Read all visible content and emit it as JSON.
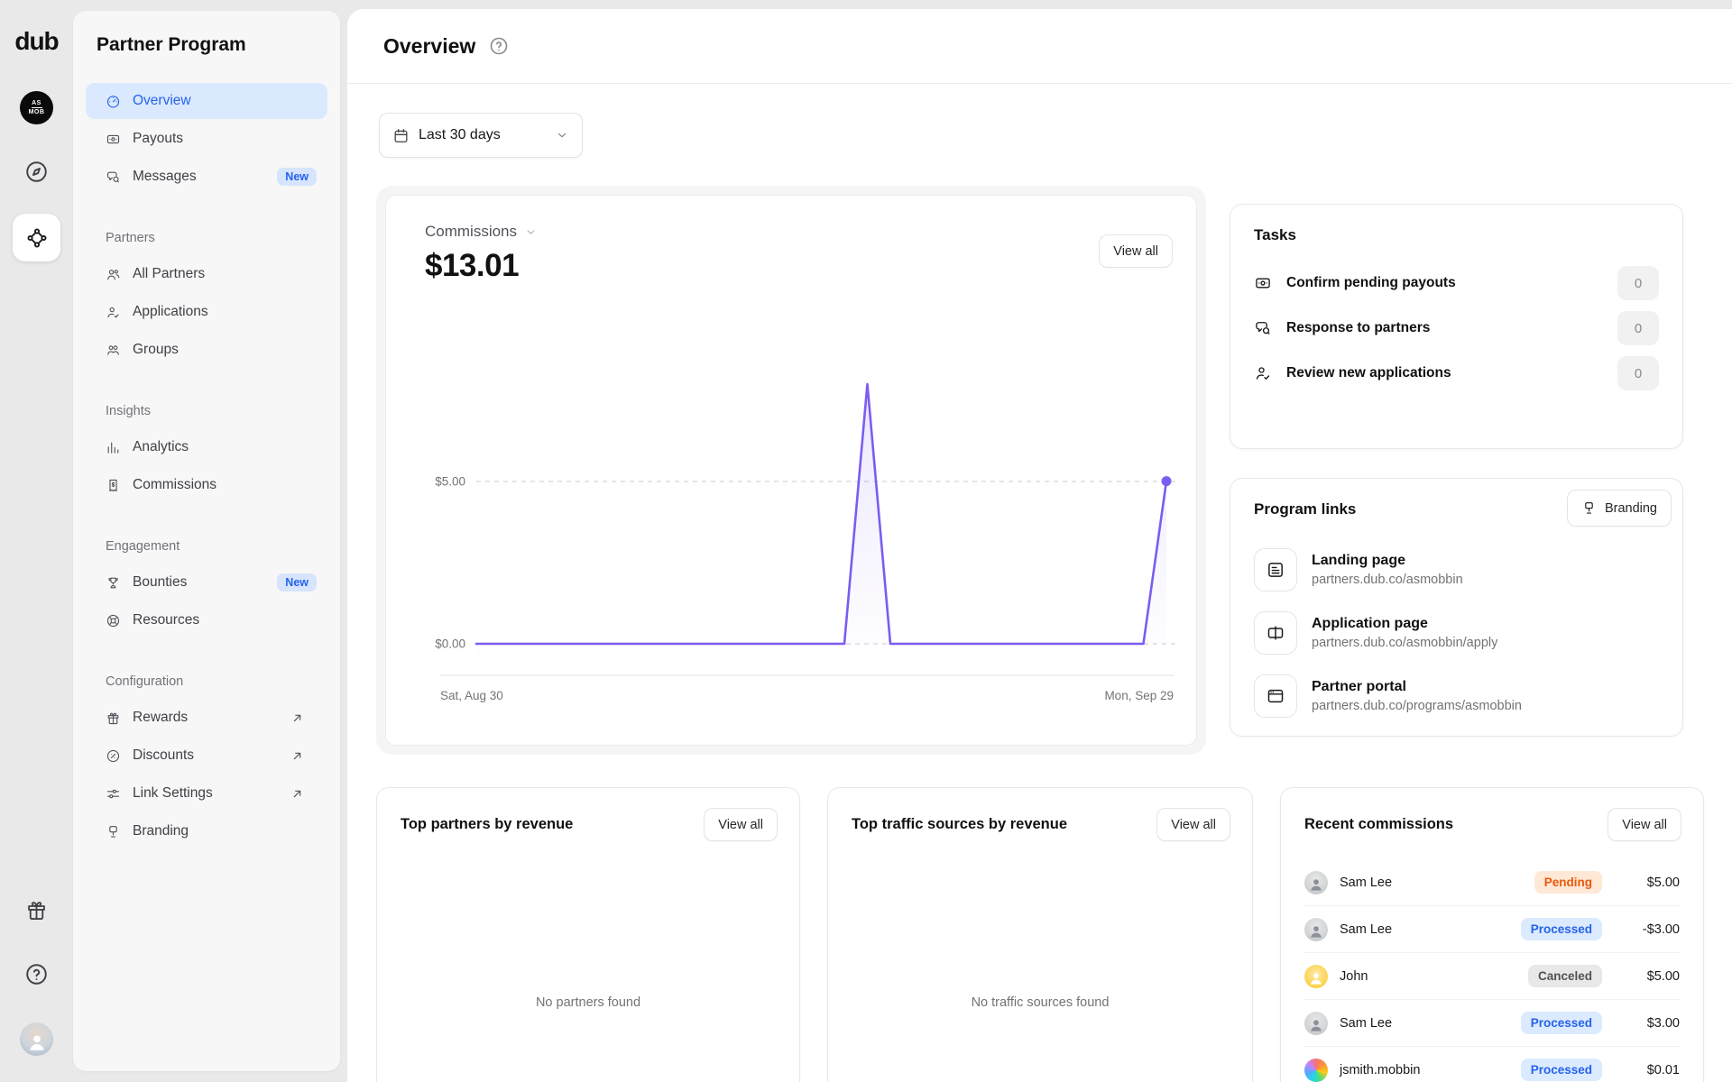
{
  "colors": {
    "accent_blue": "#2563eb",
    "active_nav_bg": "#dbe9fe",
    "chart_violet": "#7c5cf0",
    "pending_text": "#ea580c",
    "pending_bg": "#ffe8d5",
    "processed_text": "#2563eb",
    "processed_bg": "#dbeafe",
    "canceled_text": "#525252",
    "canceled_bg": "#e8e8e8"
  },
  "rail": {
    "logo": "dub",
    "workspace_monogram": [
      "AS",
      "MOB"
    ],
    "icons": [
      "compass-icon",
      "program-hub-icon",
      "gift-icon",
      "help-icon",
      "user-avatar"
    ]
  },
  "sidebar": {
    "title": "Partner Program",
    "sections": [
      {
        "label": null,
        "items": [
          {
            "label": "Overview",
            "icon": "gauge",
            "active": true
          },
          {
            "label": "Payouts",
            "icon": "payouts"
          },
          {
            "label": "Messages",
            "icon": "messages",
            "badge": "New"
          }
        ]
      },
      {
        "label": "Partners",
        "items": [
          {
            "label": "All Partners",
            "icon": "partners"
          },
          {
            "label": "Applications",
            "icon": "applications"
          },
          {
            "label": "Groups",
            "icon": "groups"
          }
        ]
      },
      {
        "label": "Insights",
        "items": [
          {
            "label": "Analytics",
            "icon": "analytics"
          },
          {
            "label": "Commissions",
            "icon": "commissions"
          }
        ]
      },
      {
        "label": "Engagement",
        "items": [
          {
            "label": "Bounties",
            "icon": "bounties",
            "badge": "New"
          },
          {
            "label": "Resources",
            "icon": "resources"
          }
        ]
      },
      {
        "label": "Configuration",
        "items": [
          {
            "label": "Rewards",
            "icon": "rewards",
            "external": true
          },
          {
            "label": "Discounts",
            "icon": "discounts",
            "external": true
          },
          {
            "label": "Link Settings",
            "icon": "link-settings",
            "external": true
          },
          {
            "label": "Branding",
            "icon": "branding"
          }
        ]
      }
    ]
  },
  "header": {
    "title": "Overview"
  },
  "filter": {
    "date_range": "Last 30 days"
  },
  "commissions_card": {
    "metric_label": "Commissions",
    "metric_value": "$13.01",
    "view_all": "View all"
  },
  "chart_data": {
    "type": "area",
    "title": "Commissions",
    "total": "$13.01",
    "x": [
      "Aug 30",
      "Aug 31",
      "Sep 1",
      "Sep 2",
      "Sep 3",
      "Sep 4",
      "Sep 5",
      "Sep 6",
      "Sep 7",
      "Sep 8",
      "Sep 9",
      "Sep 10",
      "Sep 11",
      "Sep 12",
      "Sep 13",
      "Sep 14",
      "Sep 15",
      "Sep 16",
      "Sep 17",
      "Sep 18",
      "Sep 19",
      "Sep 20",
      "Sep 21",
      "Sep 22",
      "Sep 23",
      "Sep 24",
      "Sep 25",
      "Sep 26",
      "Sep 27",
      "Sep 28",
      "Sep 29"
    ],
    "values": [
      0,
      0,
      0,
      0,
      0,
      0,
      0,
      0,
      0,
      0,
      0,
      0,
      0,
      0,
      0,
      0,
      0,
      8.0,
      0,
      0,
      0,
      0,
      0,
      0,
      0,
      0,
      0,
      0,
      0,
      0,
      5.01
    ],
    "y_ticks": [
      "$5.00",
      "$0.00"
    ],
    "y_tick_values": [
      5,
      0
    ],
    "x_axis_labels": [
      "Sat, Aug 30",
      "Mon, Sep 29"
    ],
    "ylim": [
      0,
      8.8
    ],
    "grid": "dashed-horizontal",
    "legend": "none",
    "line_color": "#7c5cf0",
    "fill_color": "rgba(124,92,240,0.13)",
    "end_dot": true
  },
  "tasks": {
    "title": "Tasks",
    "items": [
      {
        "label": "Confirm pending payouts",
        "count": "0",
        "icon": "payouts"
      },
      {
        "label": "Response to partners",
        "count": "0",
        "icon": "messages"
      },
      {
        "label": "Review new applications",
        "count": "0",
        "icon": "applications"
      }
    ]
  },
  "program_links": {
    "title": "Program links",
    "branding_button": "Branding",
    "links": [
      {
        "title": "Landing page",
        "url": "partners.dub.co/asmobbin",
        "icon": "page"
      },
      {
        "title": "Application page",
        "url": "partners.dub.co/asmobbin/apply",
        "icon": "app-window"
      },
      {
        "title": "Partner portal",
        "url": "partners.dub.co/programs/asmobbin",
        "icon": "browser"
      }
    ]
  },
  "top_partners": {
    "title": "Top partners by revenue",
    "view_all": "View all",
    "empty": "No partners found"
  },
  "top_traffic": {
    "title": "Top traffic sources by revenue",
    "view_all": "View all",
    "empty": "No traffic sources found"
  },
  "recent_commissions": {
    "title": "Recent commissions",
    "view_all": "View all",
    "rows": [
      {
        "name": "Sam Lee",
        "status": "Pending",
        "amount": "$5.00",
        "avatar": "photo-gray"
      },
      {
        "name": "Sam Lee",
        "status": "Processed",
        "amount": "-$3.00",
        "avatar": "photo-gray"
      },
      {
        "name": "John",
        "status": "Canceled",
        "amount": "$5.00",
        "avatar": "yellow-person"
      },
      {
        "name": "Sam Lee",
        "status": "Processed",
        "amount": "$3.00",
        "avatar": "photo-gray"
      },
      {
        "name": "jsmith.mobbin",
        "status": "Processed",
        "amount": "$0.01",
        "avatar": "rainbow"
      }
    ]
  }
}
